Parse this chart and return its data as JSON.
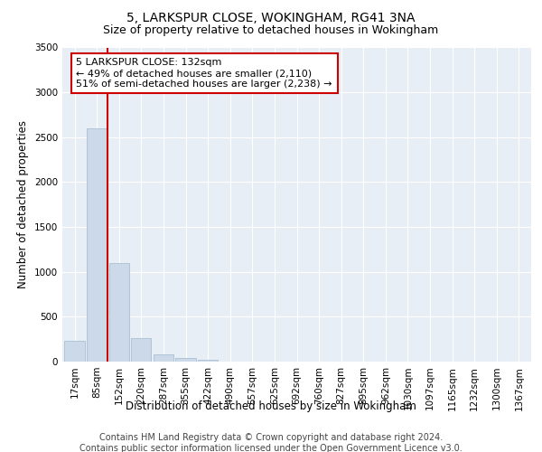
{
  "title_line1": "5, LARKSPUR CLOSE, WOKINGHAM, RG41 3NA",
  "title_line2": "Size of property relative to detached houses in Wokingham",
  "xlabel": "Distribution of detached houses by size in Wokingham",
  "ylabel": "Number of detached properties",
  "categories": [
    "17sqm",
    "85sqm",
    "152sqm",
    "220sqm",
    "287sqm",
    "355sqm",
    "422sqm",
    "490sqm",
    "557sqm",
    "625sqm",
    "692sqm",
    "760sqm",
    "827sqm",
    "895sqm",
    "962sqm",
    "1030sqm",
    "1097sqm",
    "1165sqm",
    "1232sqm",
    "1300sqm",
    "1367sqm"
  ],
  "values": [
    230,
    2600,
    1100,
    260,
    80,
    45,
    20,
    0,
    0,
    0,
    0,
    0,
    0,
    0,
    0,
    0,
    0,
    0,
    0,
    0,
    0
  ],
  "bar_color": "#ccd9e8",
  "bar_edge_color": "#a8c0d4",
  "vline_x_index": 1.5,
  "vline_color": "#cc0000",
  "annotation_text": "5 LARKSPUR CLOSE: 132sqm\n← 49% of detached houses are smaller (2,110)\n51% of semi-detached houses are larger (2,238) →",
  "annotation_box_color": "#ffffff",
  "annotation_box_edge_color": "#cc0000",
  "ylim": [
    0,
    3500
  ],
  "yticks": [
    0,
    500,
    1000,
    1500,
    2000,
    2500,
    3000,
    3500
  ],
  "background_color": "#e8eef5",
  "footer_line1": "Contains HM Land Registry data © Crown copyright and database right 2024.",
  "footer_line2": "Contains public sector information licensed under the Open Government Licence v3.0.",
  "title_fontsize": 10,
  "subtitle_fontsize": 9,
  "axis_label_fontsize": 8.5,
  "tick_fontsize": 7.5,
  "annotation_fontsize": 8,
  "footer_fontsize": 7
}
